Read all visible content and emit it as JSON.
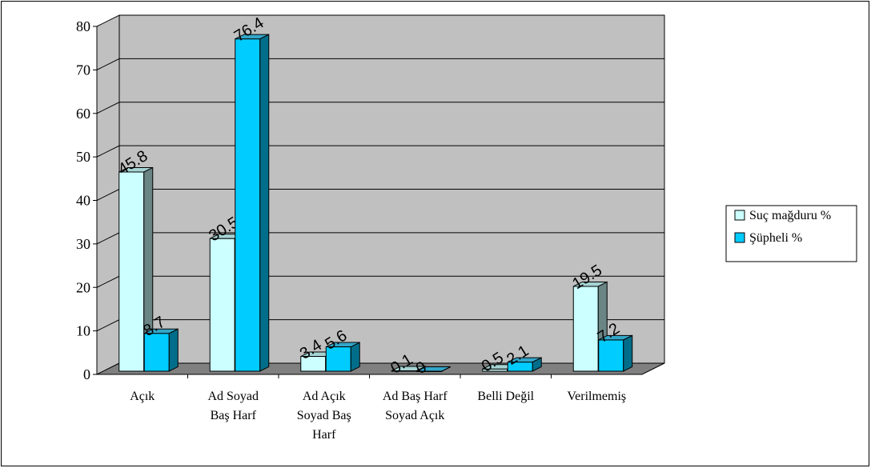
{
  "chart_data": {
    "type": "bar",
    "categories": [
      [
        "Açık"
      ],
      [
        "Ad Soyad",
        "Baş Harf"
      ],
      [
        "Ad Açık",
        "Soyad Baş",
        "Harf"
      ],
      [
        "Ad Baş Harf",
        "Soyad Açık"
      ],
      [
        "Belli Değil"
      ],
      [
        "Verilmemiş"
      ]
    ],
    "series": [
      {
        "name": "Suç mağduru  %",
        "values": [
          45.8,
          30.5,
          3.4,
          0.1,
          0.5,
          19.5
        ],
        "labels": [
          "45.8",
          "30.5",
          "3.4",
          "0.1",
          "0.5",
          "19.5"
        ],
        "color": "#ccffff",
        "side_color": "#6b8585",
        "top_color": "#a6d3d3"
      },
      {
        "name": "Şüpheli  %",
        "values": [
          8.7,
          76.4,
          5.6,
          0.0,
          2.1,
          7.2
        ],
        "labels": [
          "8.7",
          "76.4",
          "5.6",
          "0",
          "2.1",
          "7.2"
        ],
        "color": "#00ccff",
        "side_color": "#006e8a",
        "top_color": "#33a6c8"
      }
    ],
    "ylim": [
      0,
      80
    ],
    "yticks": [
      0,
      10,
      20,
      30,
      40,
      50,
      60,
      70,
      80
    ],
    "grid": true,
    "legend": "right",
    "wall_color": "#c0c0c0",
    "floor_color": "#808080"
  }
}
